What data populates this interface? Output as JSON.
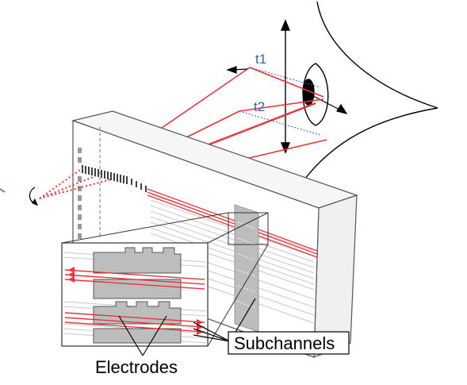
{
  "labels": {
    "t1": "t1",
    "t2": "t2",
    "subchannels": "Subchannels",
    "electrodes": "Electrodes"
  },
  "colors": {
    "beam": "#e8343c",
    "beam_light": "#f4a0a4",
    "label_blue": "#3b5fb0",
    "electrode_fill": "#bdbdbd",
    "panel_edge": "#555555"
  }
}
